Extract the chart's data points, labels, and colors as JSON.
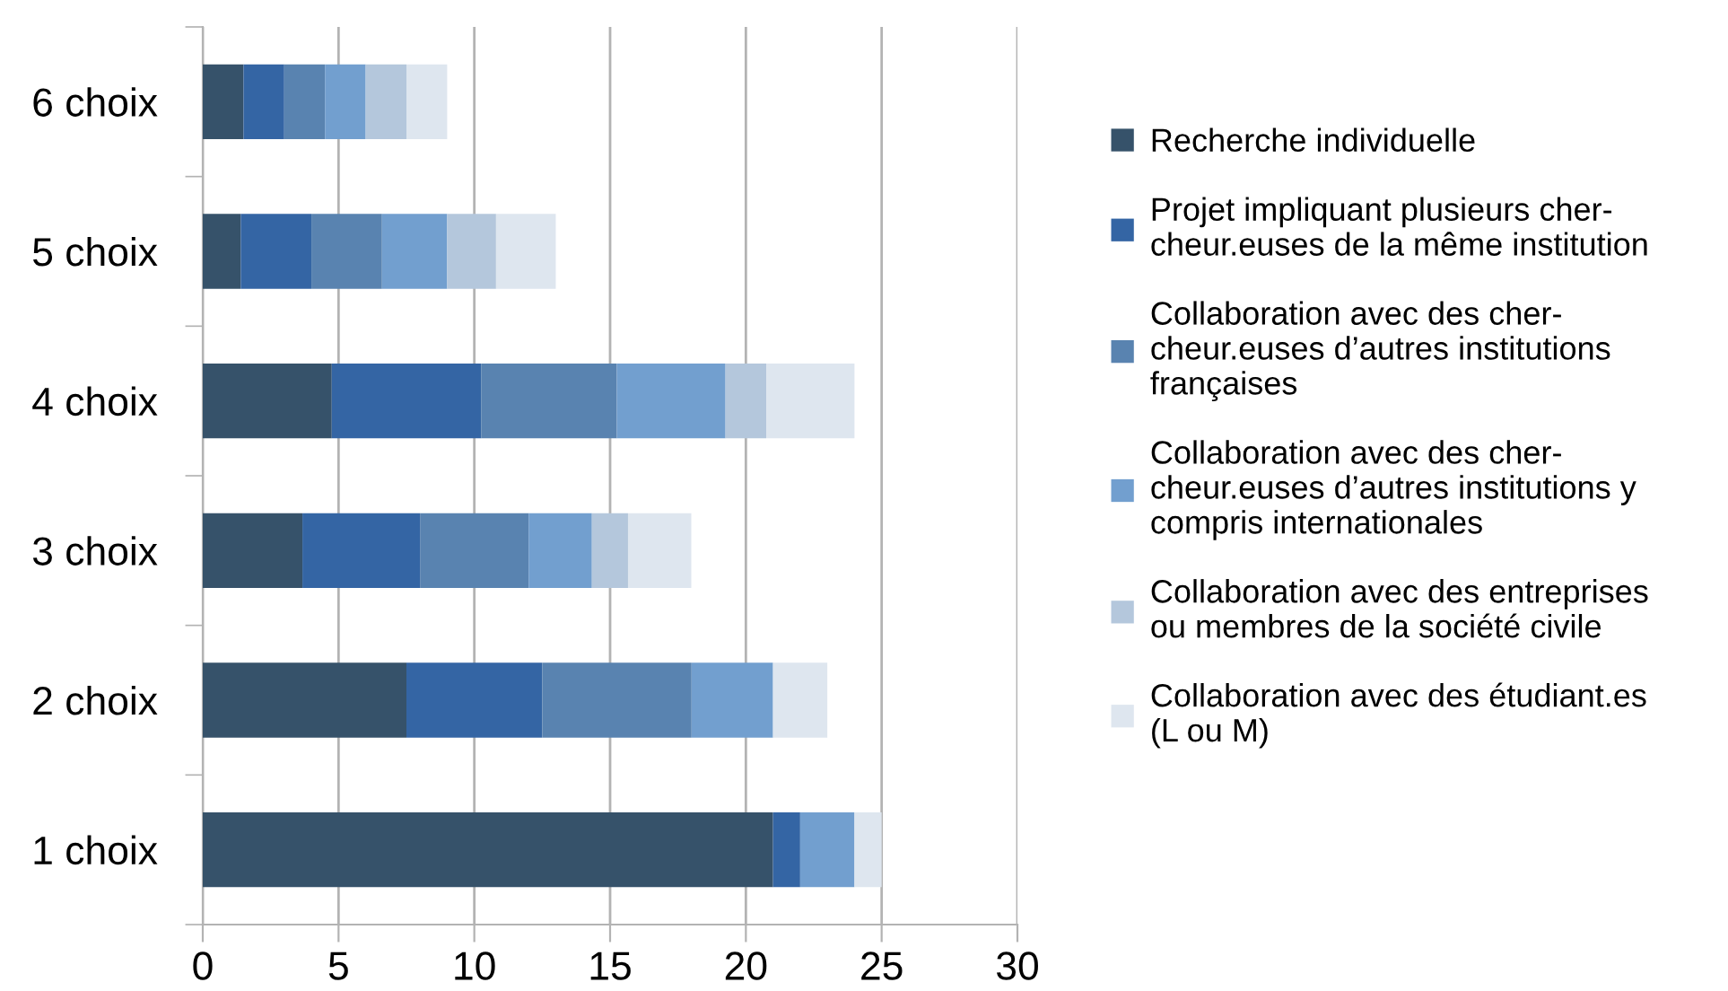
{
  "chart_data": {
    "type": "bar",
    "orientation": "horizontal",
    "stacked": true,
    "categories": [
      "6 choix",
      "5 choix",
      "4 choix",
      "3 choix",
      "2 choix",
      "1 choix"
    ],
    "series": [
      {
        "name": "Recherche individuelle",
        "color": "#36526a",
        "values": [
          1.5,
          1.4,
          4.75,
          3.67,
          7.5,
          21
        ]
      },
      {
        "name": "Projet impliquant plusieurs cher-\ncheur.euses de la même institution",
        "color": "#3465a4",
        "values": [
          1.5,
          2.6,
          5.5,
          4.33,
          5,
          1
        ]
      },
      {
        "name": "Collaboration avec des cher-\ncheur.euses d’autres institutions\nfrançaises",
        "color": "#5983b0",
        "values": [
          1.5,
          2.6,
          5,
          4,
          5.5,
          0
        ]
      },
      {
        "name": "Collaboration avec des cher-\ncheur.euses d’autres institutions y\ncompris internationales",
        "color": "#729fcf",
        "values": [
          1.5,
          2.4,
          4,
          2.33,
          3,
          2
        ]
      },
      {
        "name": "Collaboration avec des entreprises\nou membres de la société civile",
        "color": "#b4c7dc",
        "values": [
          1.5,
          1.8,
          1.5,
          1.33,
          0,
          0
        ]
      },
      {
        "name": "Collaboration avec des étudiant.es\n(L ou M)",
        "color": "#dee6ef",
        "values": [
          1.5,
          2.2,
          3.25,
          2.33,
          2,
          1
        ]
      }
    ],
    "xlim": [
      0,
      30
    ],
    "xticks": [
      0,
      5,
      10,
      15,
      20,
      25,
      30
    ],
    "grid": "x",
    "legend": "right"
  }
}
